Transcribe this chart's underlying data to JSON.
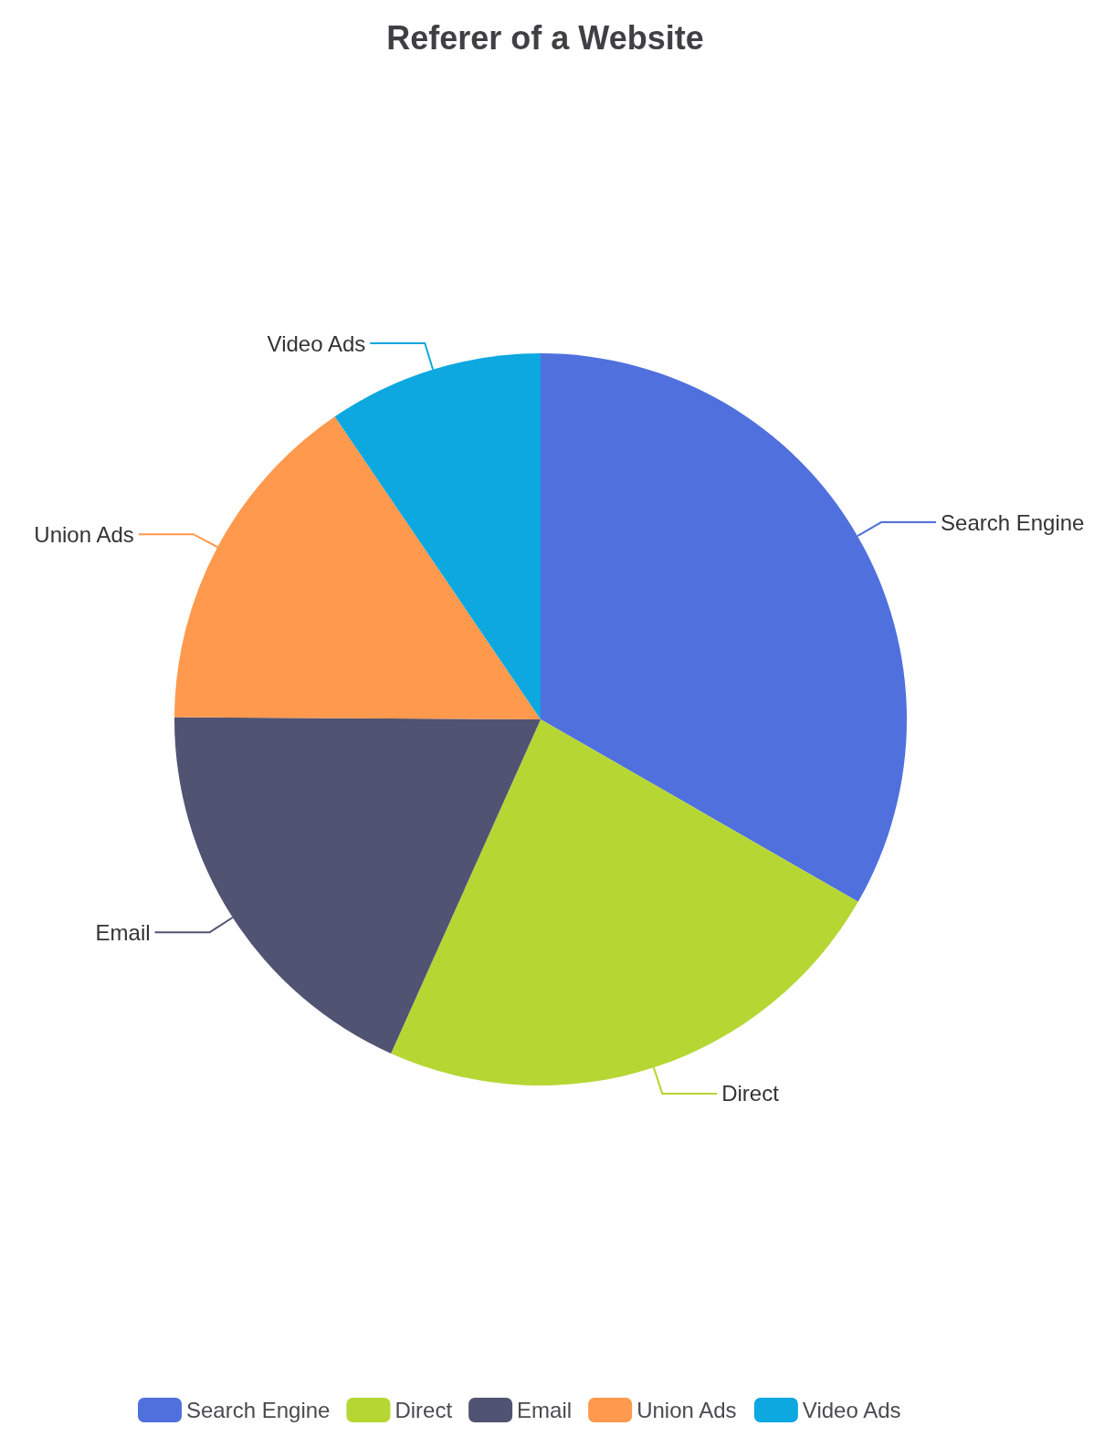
{
  "chart_data": {
    "type": "pie",
    "title": "Referer of a Website",
    "categories": [
      "Search Engine",
      "Direct",
      "Email",
      "Union Ads",
      "Video Ads"
    ],
    "values": [
      33.3,
      23.4,
      18.4,
      15.4,
      9.5
    ],
    "colors": [
      "#5070dd",
      "#b6d634",
      "#505372",
      "#ff994d",
      "#0ca8df"
    ],
    "legend": "bottom"
  }
}
